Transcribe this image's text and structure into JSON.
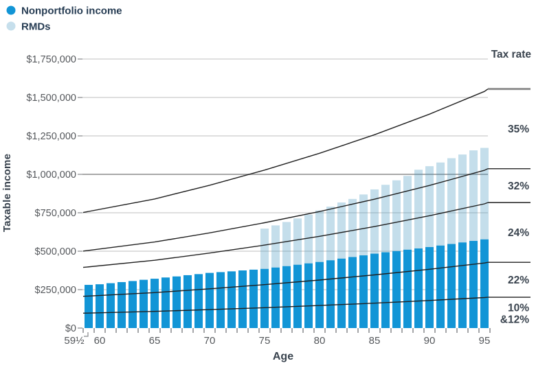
{
  "legend": {
    "items": [
      {
        "label": "Nonportfolio income",
        "swatch": "filled-circle"
      },
      {
        "label": "RMDs",
        "swatch": "filled-circle"
      }
    ]
  },
  "y_axis": {
    "title": "Taxable income",
    "ticks": [
      {
        "label": "$1,750,000",
        "value": 1750000
      },
      {
        "label": "$1,500,000",
        "value": 1500000
      },
      {
        "label": "$1,250,000",
        "value": 1250000
      },
      {
        "label": "$1,000,000",
        "value": 1000000
      },
      {
        "label": "$750,000",
        "value": 750000
      },
      {
        "label": "$500,000",
        "value": 500000
      },
      {
        "label": "$250,000",
        "value": 250000
      },
      {
        "label": "$0",
        "value": 0
      }
    ]
  },
  "x_axis": {
    "title": "Age",
    "ticks": [
      {
        "label": "59½",
        "age": 59.5,
        "offset_label": true
      },
      {
        "label": "60",
        "age": 60
      },
      {
        "label": "65",
        "age": 65
      },
      {
        "label": "70",
        "age": 70
      },
      {
        "label": "75",
        "age": 75
      },
      {
        "label": "80",
        "age": 80
      },
      {
        "label": "85",
        "age": 85
      },
      {
        "label": "90",
        "age": 90
      },
      {
        "label": "95",
        "age": 95
      }
    ]
  },
  "right_axis": {
    "title": "Tax rate",
    "labels": [
      [
        "35%"
      ],
      [
        "32%"
      ],
      [
        "24%"
      ],
      [
        "22%"
      ],
      [
        "10%",
        "&12%"
      ]
    ]
  },
  "colors": {
    "nonportfolio": "#1295d6",
    "rmd_fill": "rgba(60,145,190,0.30)",
    "rmd_solid": "#c6dfec",
    "gridline": "#cccccc",
    "gridline_major": "#a8a8a8",
    "bracket_line": "#1f1f1f",
    "bracket_line_top_extension": "#8f8f8f",
    "tick": "#85878a",
    "axis_label": "#54575b",
    "title_dark": "#39434e",
    "legend_text": "#263c53"
  },
  "chart_data": {
    "type": "bar",
    "stacked": true,
    "title": "",
    "xlabel": "Age",
    "ylabel": "Taxable income",
    "ylim": [
      0,
      1750000
    ],
    "grid": true,
    "legend_position": "top-left",
    "x": [
      59.5,
      60,
      61,
      62,
      63,
      64,
      65,
      66,
      67,
      68,
      69,
      70,
      71,
      72,
      73,
      74,
      75,
      76,
      77,
      78,
      79,
      80,
      81,
      82,
      83,
      84,
      85,
      86,
      87,
      88,
      89,
      90,
      91,
      92,
      93,
      94,
      95
    ],
    "series": [
      {
        "name": "Nonportfolio income",
        "values": [
          281000,
          285000,
          292000,
          299000,
          306000,
          314000,
          321000,
          329000,
          336000,
          344000,
          351000,
          359000,
          364000,
          369000,
          375000,
          380000,
          385000,
          394000,
          403000,
          412000,
          421000,
          430000,
          441000,
          452000,
          462000,
          473000,
          484000,
          493000,
          501000,
          510000,
          518000,
          527000,
          537000,
          547000,
          557000,
          567000,
          577000
        ]
      },
      {
        "name": "RMDs",
        "values": [
          0,
          0,
          0,
          0,
          0,
          0,
          0,
          0,
          0,
          0,
          0,
          0,
          0,
          0,
          0,
          0,
          262000,
          274000,
          287000,
          301000,
          317000,
          335000,
          349000,
          365000,
          378000,
          396000,
          418000,
          439000,
          460000,
          480000,
          512000,
          526000,
          540000,
          558000,
          572000,
          589000,
          595000
        ]
      }
    ],
    "tax_bracket_lines": {
      "description": "Tax bracket upper thresholds rising with inflation over the ages shown; lines labeled by the rate band beneath them at right edge",
      "anchor_ages": [
        59.5,
        65,
        70,
        75,
        80,
        85,
        90,
        95,
        95.5
      ],
      "lines": [
        {
          "name": "top of 35% bracket",
          "values": [
            751600,
            839900,
            929100,
            1027900,
            1137000,
            1257800,
            1391600,
            1539400,
            1555100
          ]
        },
        {
          "name": "top of 32% bracket",
          "values": [
            501050,
            559900,
            619400,
            685200,
            758000,
            838500,
            927700,
            1026300,
            1036700
          ]
        },
        {
          "name": "top of 24% bracket",
          "values": [
            394600,
            441000,
            487800,
            539700,
            597000,
            660400,
            730600,
            808200,
            816400
          ]
        },
        {
          "name": "top of 22% bracket",
          "values": [
            206700,
            231000,
            255500,
            282700,
            312700,
            345900,
            382700,
            423400,
            427700
          ]
        },
        {
          "name": "top of 10% & 12% bracket",
          "values": [
            96950,
            108300,
            119900,
            132600,
            146700,
            162200,
            179500,
            198600,
            200600
          ]
        }
      ]
    },
    "tax_rate_bands": [
      "35%",
      "32%",
      "24%",
      "22%",
      "10% & 12%"
    ]
  }
}
